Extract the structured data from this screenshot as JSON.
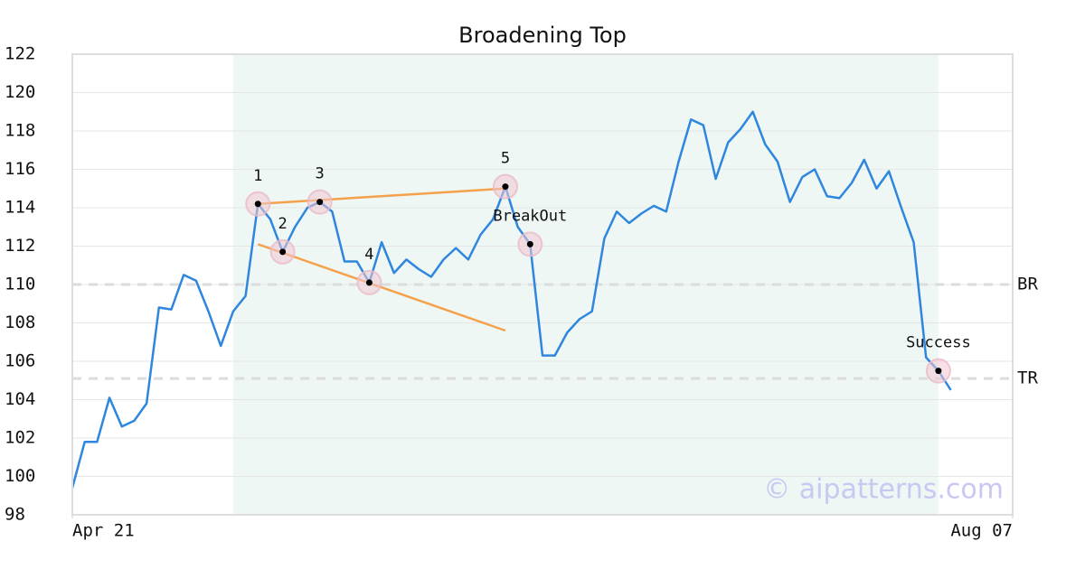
{
  "chart_data": {
    "type": "line",
    "title": "Broadening Top",
    "watermark": "© aipatterns.com",
    "color": "#2e86de",
    "values": [
      99.4,
      101.8,
      101.8,
      104.1,
      102.6,
      102.9,
      103.8,
      108.8,
      108.7,
      110.5,
      110.2,
      108.6,
      106.8,
      108.6,
      109.4,
      114.2,
      113.4,
      111.7,
      113.0,
      114.0,
      114.3,
      113.8,
      111.2,
      111.2,
      110.1,
      112.2,
      110.6,
      111.3,
      110.8,
      110.4,
      111.3,
      111.9,
      111.3,
      112.6,
      113.4,
      115.1,
      113.0,
      112.1,
      106.3,
      106.3,
      107.5,
      108.2,
      108.6,
      112.4,
      113.8,
      113.2,
      113.7,
      114.1,
      113.8,
      116.4,
      118.6,
      118.3,
      115.5,
      117.4,
      118.1,
      119.0,
      117.3,
      116.4,
      114.3,
      115.6,
      116.0,
      114.6,
      114.5,
      115.3,
      116.5,
      115.0,
      115.9,
      114.0,
      112.2,
      106.2,
      105.5,
      104.5
    ],
    "xlim": [
      0,
      76
    ],
    "xticks": [
      {
        "value": 0,
        "label": "Apr 21"
      },
      {
        "value": 76,
        "label": "Aug 07"
      }
    ],
    "ylim": [
      98,
      122
    ],
    "yticks": [
      98,
      100,
      102,
      104,
      106,
      108,
      110,
      112,
      114,
      116,
      118,
      120,
      122
    ],
    "grid": true,
    "shade": [
      13,
      70
    ],
    "shade_color": "#eef7f3",
    "trendline_color": "#f5a04a",
    "trendlines": [
      {
        "x": [
          15,
          35
        ],
        "y": [
          114.2,
          115.0
        ]
      },
      {
        "x": [
          15,
          35
        ],
        "y": [
          112.1,
          107.6
        ]
      }
    ],
    "hlines": [
      {
        "label": "BR",
        "value": 110.0
      },
      {
        "label": "TR",
        "value": 105.1
      }
    ],
    "markers": [
      {
        "label": "1",
        "x": 15,
        "y": 114.2
      },
      {
        "label": "2",
        "x": 17,
        "y": 111.7
      },
      {
        "label": "3",
        "x": 20,
        "y": 114.3
      },
      {
        "label": "4",
        "x": 24,
        "y": 110.1
      },
      {
        "label": "5",
        "x": 35,
        "y": 115.1
      },
      {
        "label": "BreakOut",
        "x": 37,
        "y": 112.1
      },
      {
        "label": "Success",
        "x": 70,
        "y": 105.5
      }
    ]
  }
}
